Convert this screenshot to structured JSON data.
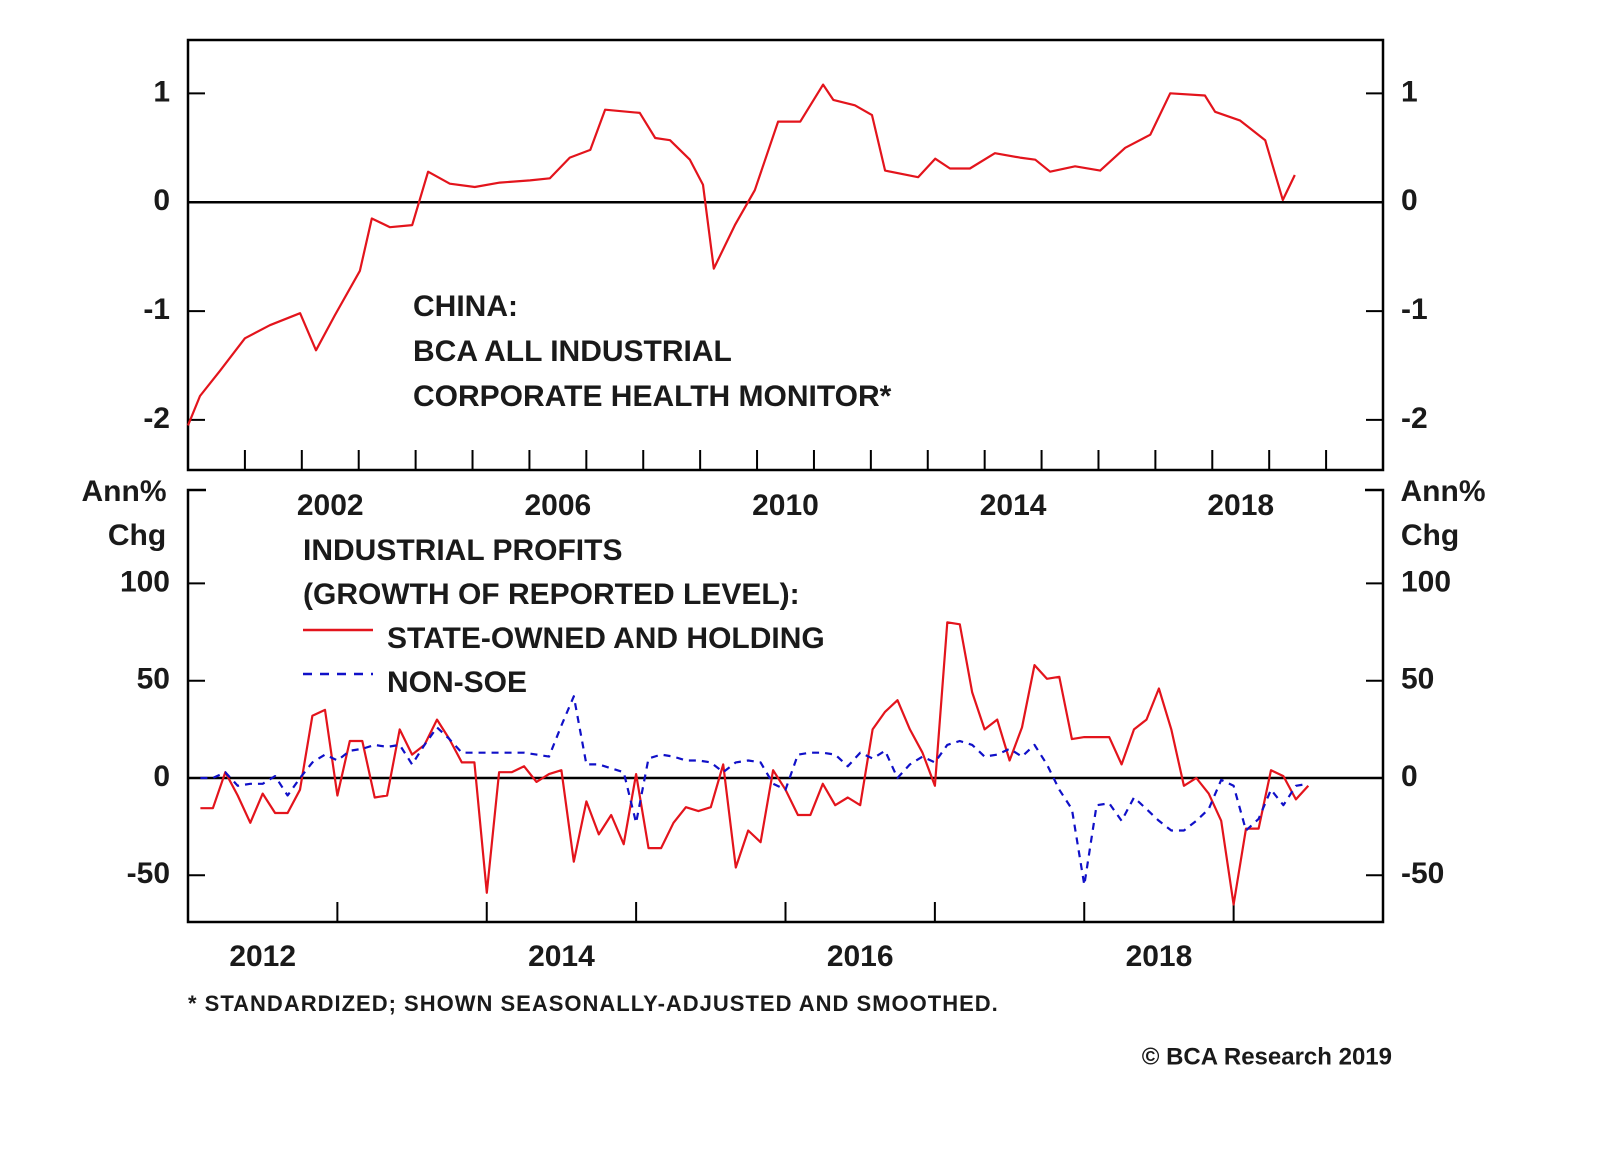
{
  "chart_data": [
    {
      "type": "line",
      "annotation": [
        "CHINA:",
        "BCA ALL INDUSTRIAL",
        "CORPORATE HEALTH MONITOR*"
      ],
      "x": [
        2000.0,
        2000.21,
        2000.56,
        2001.0,
        2001.44,
        2001.97,
        2002.25,
        2002.58,
        2003.02,
        2003.23,
        2003.55,
        2003.94,
        2004.22,
        2004.6,
        2005.04,
        2005.48,
        2006.01,
        2006.36,
        2006.71,
        2007.07,
        2007.33,
        2007.94,
        2008.21,
        2008.47,
        2008.82,
        2009.05,
        2009.24,
        2009.61,
        2009.96,
        2010.37,
        2010.76,
        2011.16,
        2011.34,
        2011.72,
        2012.02,
        2012.25,
        2012.83,
        2013.13,
        2013.39,
        2013.74,
        2014.18,
        2014.62,
        2014.89,
        2015.15,
        2015.59,
        2016.03,
        2016.47,
        2016.91,
        2017.26,
        2017.87,
        2018.05,
        2018.49,
        2018.93,
        2019.24,
        2019.45
      ],
      "series": [
        {
          "color": "#e3141c",
          "style": "solid",
          "values": [
            -2.05,
            -1.78,
            -1.55,
            -1.25,
            -1.13,
            -1.02,
            -1.36,
            -1.04,
            -0.63,
            -0.15,
            -0.23,
            -0.21,
            0.28,
            0.17,
            0.14,
            0.18,
            0.2,
            0.22,
            0.41,
            0.48,
            0.85,
            0.82,
            0.59,
            0.57,
            0.39,
            0.16,
            -0.61,
            -0.21,
            0.11,
            0.74,
            0.74,
            1.08,
            0.94,
            0.89,
            0.8,
            0.29,
            0.23,
            0.4,
            0.31,
            0.31,
            0.45,
            0.41,
            0.39,
            0.28,
            0.33,
            0.29,
            0.5,
            0.62,
            1.0,
            0.98,
            0.83,
            0.75,
            0.57,
            0.02,
            0.25
          ]
        }
      ],
      "xlim": [
        2000,
        2021
      ],
      "xticks": [
        {
          "value": 2002.5,
          "label": "2002"
        },
        {
          "value": 2006.5,
          "label": "2006"
        },
        {
          "value": 2010.5,
          "label": "2010"
        },
        {
          "value": 2014.5,
          "label": "2014"
        },
        {
          "value": 2018.5,
          "label": "2018"
        }
      ],
      "xminorticks": [
        2001,
        2002,
        2003,
        2004,
        2005,
        2006,
        2007,
        2008,
        2009,
        2010,
        2011,
        2012,
        2013,
        2014,
        2015,
        2016,
        2017,
        2018,
        2019,
        2020
      ],
      "ylim": [
        -2.46,
        1.49
      ],
      "yticks": [
        1,
        0,
        -1,
        -2
      ],
      "zero_line": true
    },
    {
      "type": "line",
      "ylabel": [
        "Ann%",
        "Chg"
      ],
      "legend_title": [
        "INDUSTRIAL PROFITS",
        "(GROWTH OF REPORTED LEVEL):"
      ],
      "x": [
        2012.083,
        2012.167,
        2012.25,
        2012.333,
        2012.417,
        2012.5,
        2012.583,
        2012.667,
        2012.75,
        2012.833,
        2012.917,
        2013,
        2013.083,
        2013.167,
        2013.25,
        2013.333,
        2013.417,
        2013.5,
        2013.583,
        2013.667,
        2013.75,
        2013.833,
        2013.917,
        2014,
        2014.083,
        2014.167,
        2014.25,
        2014.333,
        2014.417,
        2014.5,
        2014.583,
        2014.667,
        2014.75,
        2014.833,
        2014.917,
        2015,
        2015.083,
        2015.167,
        2015.25,
        2015.333,
        2015.417,
        2015.5,
        2015.583,
        2015.667,
        2015.75,
        2015.833,
        2015.917,
        2016,
        2016.083,
        2016.167,
        2016.25,
        2016.333,
        2016.417,
        2016.5,
        2016.583,
        2016.667,
        2016.75,
        2016.833,
        2016.917,
        2017,
        2017.083,
        2017.167,
        2017.25,
        2017.333,
        2017.417,
        2017.5,
        2017.583,
        2017.667,
        2017.75,
        2017.833,
        2017.917,
        2018,
        2018.083,
        2018.167,
        2018.25,
        2018.333,
        2018.417,
        2018.5,
        2018.583,
        2018.667,
        2018.75,
        2018.833,
        2018.917,
        2019,
        2019.083,
        2019.167,
        2019.25,
        2019.333,
        2019.417,
        2019.5
      ],
      "series": [
        {
          "name": "STATE-OWNED AND HOLDING",
          "color": "#e3141c",
          "style": "solid",
          "values": [
            -15.5,
            -15.5,
            3,
            -9,
            -23,
            -8,
            -18,
            -18,
            -6,
            32,
            35,
            -9,
            19,
            19,
            -10,
            -9,
            25,
            12,
            17,
            30,
            20,
            8,
            8,
            -59,
            3,
            3,
            6,
            -2,
            2,
            4,
            -43,
            -12,
            -29,
            -19,
            -34,
            2,
            -36,
            -36,
            -23,
            -15,
            -17,
            -15,
            7,
            -46,
            -27,
            -33,
            4,
            -6,
            -19,
            -19,
            -3,
            -14,
            -10,
            -14,
            25,
            34,
            40,
            25,
            13,
            -4,
            80,
            79,
            44,
            25,
            30,
            9,
            26,
            58,
            51,
            52,
            20,
            21,
            21,
            21,
            7,
            25,
            30,
            46,
            25,
            -4,
            0,
            -8,
            -22,
            -65,
            -26,
            -26,
            4,
            1,
            -11,
            -4
          ]
        },
        {
          "name": "NON-SOE",
          "color": "#1010c8",
          "style": "dashed",
          "values": [
            0,
            0,
            3,
            -4,
            -3,
            -3,
            1,
            -9,
            0,
            8,
            12,
            9,
            14,
            15,
            17,
            16,
            17,
            7,
            17,
            26,
            20,
            13,
            13,
            13,
            13,
            13,
            13,
            12,
            11,
            27,
            42,
            7,
            7,
            5,
            3,
            -23,
            10,
            12,
            11,
            9,
            9,
            8,
            3,
            8,
            9,
            8,
            -3,
            -6,
            12,
            13,
            13,
            12,
            6,
            13,
            10,
            14,
            0,
            7,
            11,
            8,
            17,
            19,
            17,
            11,
            12,
            15,
            11,
            17,
            7,
            -6,
            -16,
            -55,
            -14,
            -13,
            -22,
            -10,
            -16,
            -22,
            -27,
            -27,
            -22,
            -16,
            -1,
            -4,
            -27,
            -21,
            -6,
            -14,
            -4,
            -3
          ]
        }
      ],
      "xlim": [
        2012,
        2020
      ],
      "xticks": [
        {
          "value": 2012.5,
          "label": "2012"
        },
        {
          "value": 2014.5,
          "label": "2014"
        },
        {
          "value": 2016.5,
          "label": "2016"
        },
        {
          "value": 2018.5,
          "label": "2018"
        }
      ],
      "xminorticks": [
        2013,
        2014,
        2015,
        2016,
        2017,
        2018,
        2019
      ],
      "ylim": [
        -74,
        148
      ],
      "yticks": [
        100,
        50,
        0,
        -50
      ],
      "zero_line": true
    }
  ],
  "footnote": "* STANDARDIZED; SHOWN SEASONALLY-ADJUSTED AND SMOOTHED.",
  "source": "© BCA Research 2019"
}
